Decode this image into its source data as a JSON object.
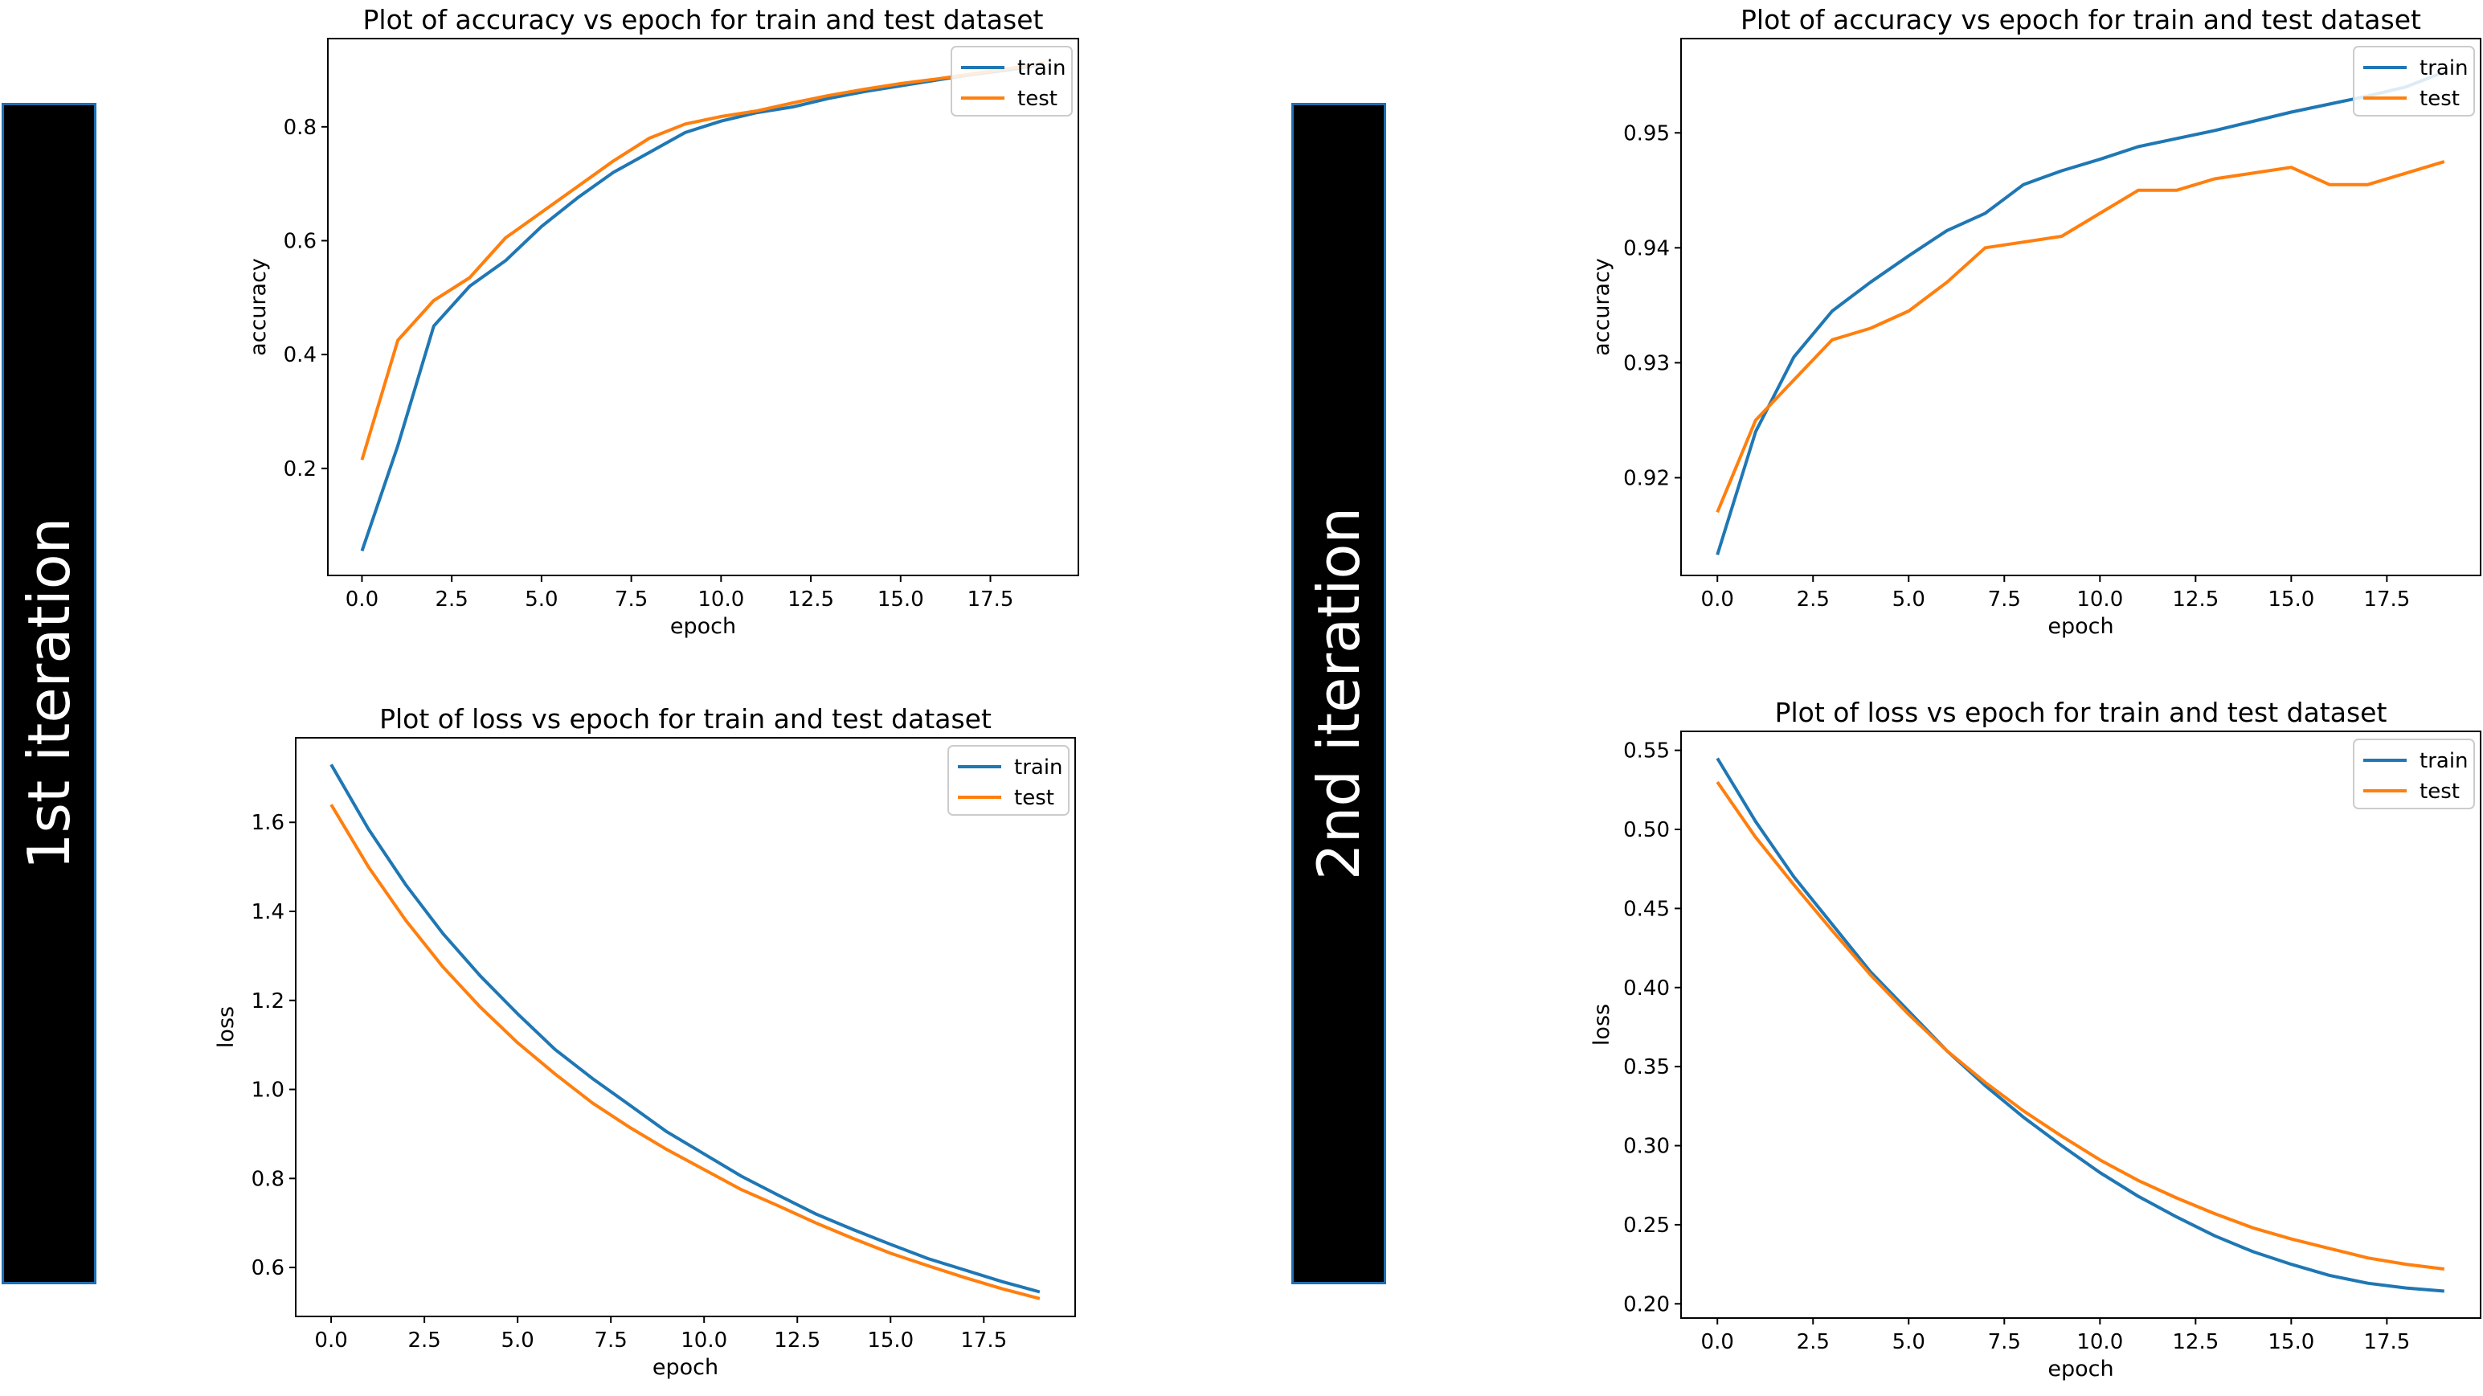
{
  "side_labels": {
    "first": "1st iteration",
    "second": "2nd iteration"
  },
  "colors": {
    "train": "#1f77b4",
    "test": "#ff7f0e",
    "sidebar": "#000000",
    "sidebar_border": "#1f6fb2"
  },
  "chart_data": [
    {
      "type": "line",
      "title": "Plot of accuracy vs epoch for train and test dataset",
      "xlabel": "epoch",
      "ylabel": "accuracy",
      "xlim": [
        -0.95,
        19.95
      ],
      "ylim": [
        0.012,
        0.955
      ],
      "xticks": [
        "0.0",
        "2.5",
        "5.0",
        "7.5",
        "10.0",
        "12.5",
        "15.0",
        "17.5"
      ],
      "yticks": [
        "0.2",
        "0.4",
        "0.6",
        "0.8"
      ],
      "legend": "upper right",
      "grid": false,
      "x": [
        0,
        1,
        2,
        3,
        4,
        5,
        6,
        7,
        8,
        9,
        10,
        11,
        12,
        13,
        14,
        15,
        16,
        17,
        18,
        19
      ],
      "series": [
        {
          "name": "train",
          "values": [
            0.055,
            0.24,
            0.45,
            0.52,
            0.565,
            0.625,
            0.675,
            0.72,
            0.755,
            0.79,
            0.81,
            0.825,
            0.835,
            0.85,
            0.862,
            0.872,
            0.882,
            0.892,
            0.9,
            0.91
          ]
        },
        {
          "name": "test",
          "values": [
            0.215,
            0.425,
            0.495,
            0.535,
            0.605,
            0.65,
            0.695,
            0.74,
            0.78,
            0.805,
            0.818,
            0.828,
            0.842,
            0.855,
            0.866,
            0.876,
            0.884,
            0.893,
            0.902,
            0.912
          ]
        }
      ]
    },
    {
      "type": "line",
      "title": "Plot of loss vs epoch for train and test dataset",
      "xlabel": "epoch",
      "ylabel": "loss",
      "xlim": [
        -0.95,
        19.95
      ],
      "ylim": [
        0.49,
        1.79
      ],
      "xticks": [
        "0.0",
        "2.5",
        "5.0",
        "7.5",
        "10.0",
        "12.5",
        "15.0",
        "17.5"
      ],
      "yticks": [
        "0.6",
        "0.8",
        "1.0",
        "1.2",
        "1.4",
        "1.6"
      ],
      "legend": "upper right",
      "grid": false,
      "x": [
        0,
        1,
        2,
        3,
        4,
        5,
        6,
        7,
        8,
        9,
        10,
        11,
        12,
        13,
        14,
        15,
        16,
        17,
        18,
        19
      ],
      "series": [
        {
          "name": "train",
          "values": [
            1.73,
            1.585,
            1.46,
            1.35,
            1.255,
            1.17,
            1.09,
            1.025,
            0.965,
            0.905,
            0.855,
            0.805,
            0.762,
            0.72,
            0.685,
            0.652,
            0.62,
            0.594,
            0.568,
            0.545
          ]
        },
        {
          "name": "test",
          "values": [
            1.64,
            1.5,
            1.38,
            1.275,
            1.185,
            1.105,
            1.035,
            0.97,
            0.915,
            0.865,
            0.82,
            0.775,
            0.738,
            0.7,
            0.665,
            0.632,
            0.604,
            0.577,
            0.552,
            0.53
          ]
        }
      ]
    },
    {
      "type": "line",
      "title": "Plot of accuracy vs epoch for train and test dataset",
      "xlabel": "epoch",
      "ylabel": "accuracy",
      "xlim": [
        -0.95,
        19.95
      ],
      "ylim": [
        0.9115,
        0.9582
      ],
      "xticks": [
        "0.0",
        "2.5",
        "5.0",
        "7.5",
        "10.0",
        "12.5",
        "15.0",
        "17.5"
      ],
      "yticks": [
        "0.92",
        "0.93",
        "0.94",
        "0.95"
      ],
      "legend": "upper right",
      "grid": false,
      "x": [
        0,
        1,
        2,
        3,
        4,
        5,
        6,
        7,
        8,
        9,
        10,
        11,
        12,
        13,
        14,
        15,
        16,
        17,
        18,
        19
      ],
      "series": [
        {
          "name": "train",
          "values": [
            0.9133,
            0.924,
            0.9305,
            0.9345,
            0.937,
            0.9393,
            0.9415,
            0.943,
            0.9455,
            0.9467,
            0.9477,
            0.9488,
            0.9495,
            0.9502,
            0.951,
            0.9518,
            0.9525,
            0.9532,
            0.954,
            0.9553
          ]
        },
        {
          "name": "test",
          "values": [
            0.917,
            0.925,
            0.9285,
            0.932,
            0.933,
            0.9345,
            0.937,
            0.94,
            0.9405,
            0.941,
            0.943,
            0.945,
            0.945,
            0.946,
            0.9465,
            0.947,
            0.9455,
            0.9455,
            0.9465,
            0.9475
          ]
        }
      ]
    },
    {
      "type": "line",
      "title": "Plot of loss vs epoch for train and test dataset",
      "xlabel": "epoch",
      "ylabel": "loss",
      "xlim": [
        -0.95,
        19.95
      ],
      "ylim": [
        0.191,
        0.562
      ],
      "xticks": [
        "0.0",
        "2.5",
        "5.0",
        "7.5",
        "10.0",
        "12.5",
        "15.0",
        "17.5"
      ],
      "yticks": [
        "0.20",
        "0.25",
        "0.30",
        "0.35",
        "0.40",
        "0.45",
        "0.50",
        "0.55"
      ],
      "legend": "upper right",
      "grid": false,
      "x": [
        0,
        1,
        2,
        3,
        4,
        5,
        6,
        7,
        8,
        9,
        10,
        11,
        12,
        13,
        14,
        15,
        16,
        17,
        18,
        19
      ],
      "series": [
        {
          "name": "train",
          "values": [
            0.545,
            0.505,
            0.47,
            0.44,
            0.41,
            0.385,
            0.36,
            0.338,
            0.318,
            0.3,
            0.283,
            0.268,
            0.255,
            0.243,
            0.233,
            0.225,
            0.218,
            0.213,
            0.21,
            0.208
          ]
        },
        {
          "name": "test",
          "values": [
            0.53,
            0.495,
            0.465,
            0.436,
            0.408,
            0.383,
            0.36,
            0.34,
            0.322,
            0.306,
            0.291,
            0.278,
            0.267,
            0.257,
            0.248,
            0.241,
            0.235,
            0.229,
            0.225,
            0.222
          ]
        }
      ]
    }
  ]
}
